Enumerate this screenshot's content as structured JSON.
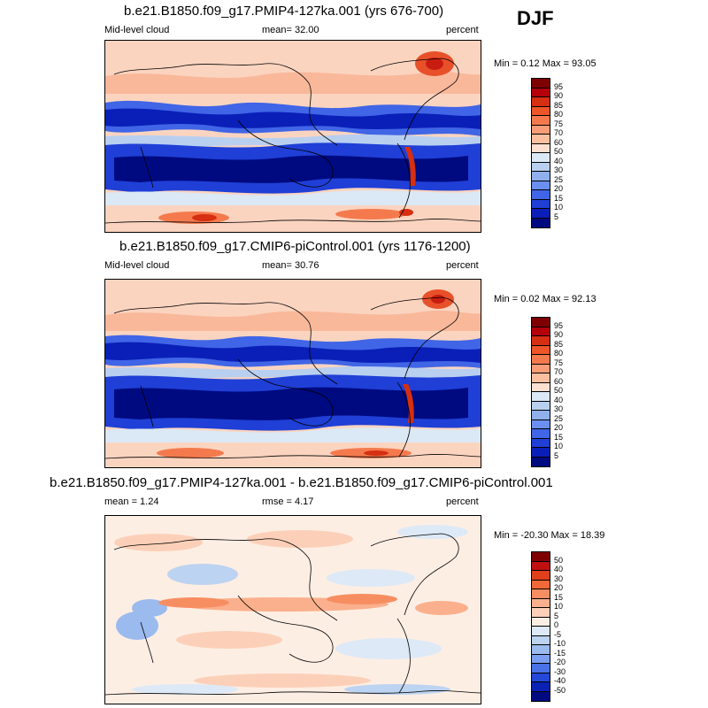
{
  "season": "DJF",
  "panels": [
    {
      "title": "b.e21.B1850.f09_g17.PMIP4-127ka.001 (yrs 676-700)",
      "left_label": "Mid-level cloud",
      "mean_text": "mean=  32.00",
      "units": "percent",
      "minmax": "Min =  0.12 Max =  93.05",
      "colorbar": {
        "labels": [
          "95",
          "90",
          "85",
          "80",
          "75",
          "70",
          "60",
          "50",
          "40",
          "30",
          "25",
          "20",
          "15",
          "10",
          "5"
        ],
        "colors": [
          "#7f0000",
          "#b3000a",
          "#d62f12",
          "#ee5528",
          "#f47a4e",
          "#f99d78",
          "#fbbfa0",
          "#fde0d0",
          "#dbe8f5",
          "#b8cff0",
          "#8fb0ec",
          "#6b8ff0",
          "#4065e6",
          "#1f3fd6",
          "#0a1fb8",
          "#000a80"
        ]
      }
    },
    {
      "title": "b.e21.B1850.f09_g17.CMIP6-piControl.001 (yrs 1176-1200)",
      "left_label": "Mid-level cloud",
      "mean_text": "mean=  30.76",
      "units": "percent",
      "minmax": "Min =  0.02 Max =  92.13",
      "colorbar": {
        "labels": [
          "95",
          "90",
          "85",
          "80",
          "75",
          "70",
          "60",
          "50",
          "40",
          "30",
          "25",
          "20",
          "15",
          "10",
          "5"
        ],
        "colors": [
          "#7f0000",
          "#b3000a",
          "#d62f12",
          "#ee5528",
          "#f47a4e",
          "#f99d78",
          "#fbbfa0",
          "#fde0d0",
          "#dbe8f5",
          "#b8cff0",
          "#8fb0ec",
          "#6b8ff0",
          "#4065e6",
          "#1f3fd6",
          "#0a1fb8",
          "#000a80"
        ]
      }
    },
    {
      "title": "b.e21.B1850.f09_g17.PMIP4-127ka.001 - b.e21.B1850.f09_g17.CMIP6-piControl.001",
      "left_label": "mean =   1.24",
      "mean_text": "rmse =   4.17",
      "units": "percent",
      "minmax": "Min = -20.30 Max =  18.39",
      "colorbar": {
        "labels": [
          "50",
          "40",
          "30",
          "20",
          "15",
          "10",
          "5",
          "0",
          "-5",
          "-10",
          "-15",
          "-20",
          "-30",
          "-40",
          "-50"
        ],
        "colors": [
          "#7f0000",
          "#c01010",
          "#e0401c",
          "#f26836",
          "#f78e62",
          "#fab08c",
          "#fcd0b8",
          "#fdeee4",
          "#dde9f6",
          "#bcd3f1",
          "#9bbbee",
          "#7a9ff0",
          "#4a72e6",
          "#2448d8",
          "#0a22b4",
          "#000a80"
        ]
      }
    }
  ]
}
